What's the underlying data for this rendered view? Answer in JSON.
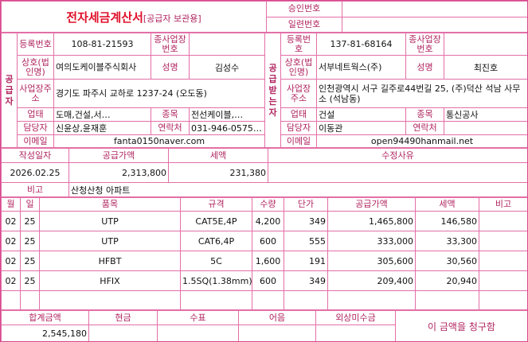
{
  "header": {
    "title": "전자세금계산서",
    "subtitle": "[공급자 보관용]",
    "approval_label": "승인번호",
    "serial_label": "일련번호"
  },
  "supplier": {
    "section_label": "공급자",
    "reg_no_label": "등록번호",
    "reg_no": "108-81-21593",
    "branch_label": "종사업장번호",
    "name_label": "상호(법인명)",
    "name": "여의도케이블주식회사",
    "ceo_label": "성명",
    "ceo": "김성수",
    "address_label": "사업장주소",
    "address": "경기도 파주시 교하로 1237-24 (오도동)",
    "business_type_label": "업태",
    "business_type": "도매,건설,서…",
    "item_label": "종목",
    "item": "전선케이블,…",
    "manager_label": "담당자",
    "manager": "신윤상,윤재훈",
    "phone_label": "연락처",
    "phone": "031-946-0575…",
    "email_label": "이메일",
    "email": "fanta0150naver.com"
  },
  "buyer": {
    "section_label": "공급받는자",
    "reg_no_label": "등록번호",
    "reg_no": "137-81-68164",
    "branch_label": "종사업장번호",
    "name_label": "상호(법인명)",
    "name": "서부네트웍스(주)",
    "ceo_label": "성명",
    "ceo": "최진호",
    "address_label": "사업장주소",
    "address": "인천광역시 서구 길주로44번길 25, (주)덕산 석남 사무소 (석남동)",
    "business_type_label": "업태",
    "business_type": "건설",
    "item_label": "종목",
    "item": "통신공사",
    "manager_label": "담당자",
    "manager": "이동관",
    "phone_label": "연락처",
    "email_label": "이메일",
    "email": "open94490hanmail.net"
  },
  "summary": {
    "date_label": "작성일자",
    "date": "2026.02.25",
    "supply_label": "공급가액",
    "supply": "2,313,800",
    "tax_label": "세액",
    "tax": "231,380",
    "reason_label": "수정사유",
    "remark_label": "비고",
    "remark": "산청산청 아파트"
  },
  "items": {
    "headers": [
      "월",
      "일",
      "품목",
      "규격",
      "수량",
      "단가",
      "공급가액",
      "세액",
      "비고"
    ],
    "rows": [
      [
        "02",
        "25",
        "UTP",
        "CAT5E,4P",
        "4,200",
        "349",
        "1,465,800",
        "146,580"
      ],
      [
        "02",
        "25",
        "UTP",
        "CAT6,4P",
        "600",
        "555",
        "333,000",
        "33,300"
      ],
      [
        "02",
        "25",
        "HFBT",
        "5C",
        "1,600",
        "191",
        "305,600",
        "30,560"
      ],
      [
        "02",
        "25",
        "HFIX",
        "1.5SQ(1.38mm)",
        "600",
        "349",
        "209,400",
        "20,940"
      ]
    ]
  },
  "footer": {
    "total_label": "합계금액",
    "total": "2,545,180",
    "cash_label": "현금",
    "check_label": "수표",
    "note_label": "어음",
    "credit_label": "외상미수금",
    "claim_text": "이 금액을 청구함"
  }
}
